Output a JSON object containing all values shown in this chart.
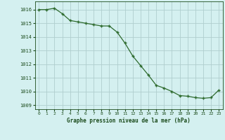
{
  "x": [
    0,
    1,
    2,
    3,
    4,
    5,
    6,
    7,
    8,
    9,
    10,
    11,
    12,
    13,
    14,
    15,
    16,
    17,
    18,
    19,
    20,
    21,
    22,
    23
  ],
  "y": [
    1016.0,
    1016.0,
    1016.1,
    1015.7,
    1015.2,
    1015.1,
    1015.0,
    1014.9,
    1014.8,
    1014.8,
    1014.35,
    1013.55,
    1012.6,
    1011.9,
    1011.2,
    1010.45,
    1010.25,
    1010.0,
    1009.7,
    1009.65,
    1009.55,
    1009.5,
    1009.55,
    1010.1
  ],
  "line_color": "#2d6a2d",
  "marker_color": "#2d6a2d",
  "bg_color": "#d4f0f0",
  "grid_color": "#b0cece",
  "xlabel": "Graphe pression niveau de la mer (hPa)",
  "xlabel_color": "#1a4a1a",
  "tick_color": "#1a4a1a",
  "ylim": [
    1008.7,
    1016.6
  ],
  "xlim": [
    -0.5,
    23.5
  ],
  "yticks": [
    1009,
    1010,
    1011,
    1012,
    1013,
    1014,
    1015,
    1016
  ],
  "xticks": [
    0,
    1,
    2,
    3,
    4,
    5,
    6,
    7,
    8,
    9,
    10,
    11,
    12,
    13,
    14,
    15,
    16,
    17,
    18,
    19,
    20,
    21,
    22,
    23
  ]
}
